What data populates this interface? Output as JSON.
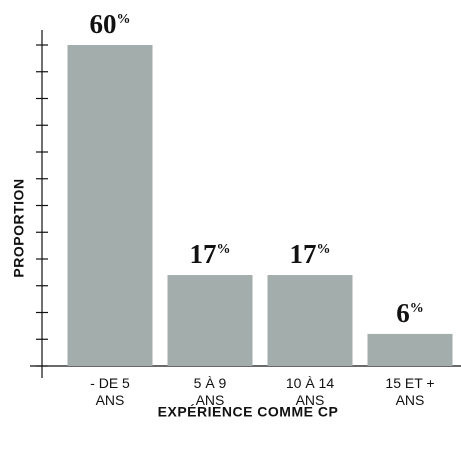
{
  "chart_data": {
    "type": "bar",
    "categories": [
      "- DE 5 ANS",
      "5 À 9 ANS",
      "10 À 14 ANS",
      "15 ET + ANS"
    ],
    "values": [
      60,
      17,
      17,
      6
    ],
    "value_labels": [
      "60%",
      "17%",
      "17%",
      "6%"
    ],
    "color": "#a3adab",
    "x_label": "EXPÉRIENCE COMME CP",
    "y_label": "PROPORTION",
    "ylim": [
      0,
      60
    ],
    "yticks": [
      0,
      5,
      10,
      15,
      20,
      25,
      30,
      35,
      40,
      45,
      50,
      55,
      60
    ]
  }
}
